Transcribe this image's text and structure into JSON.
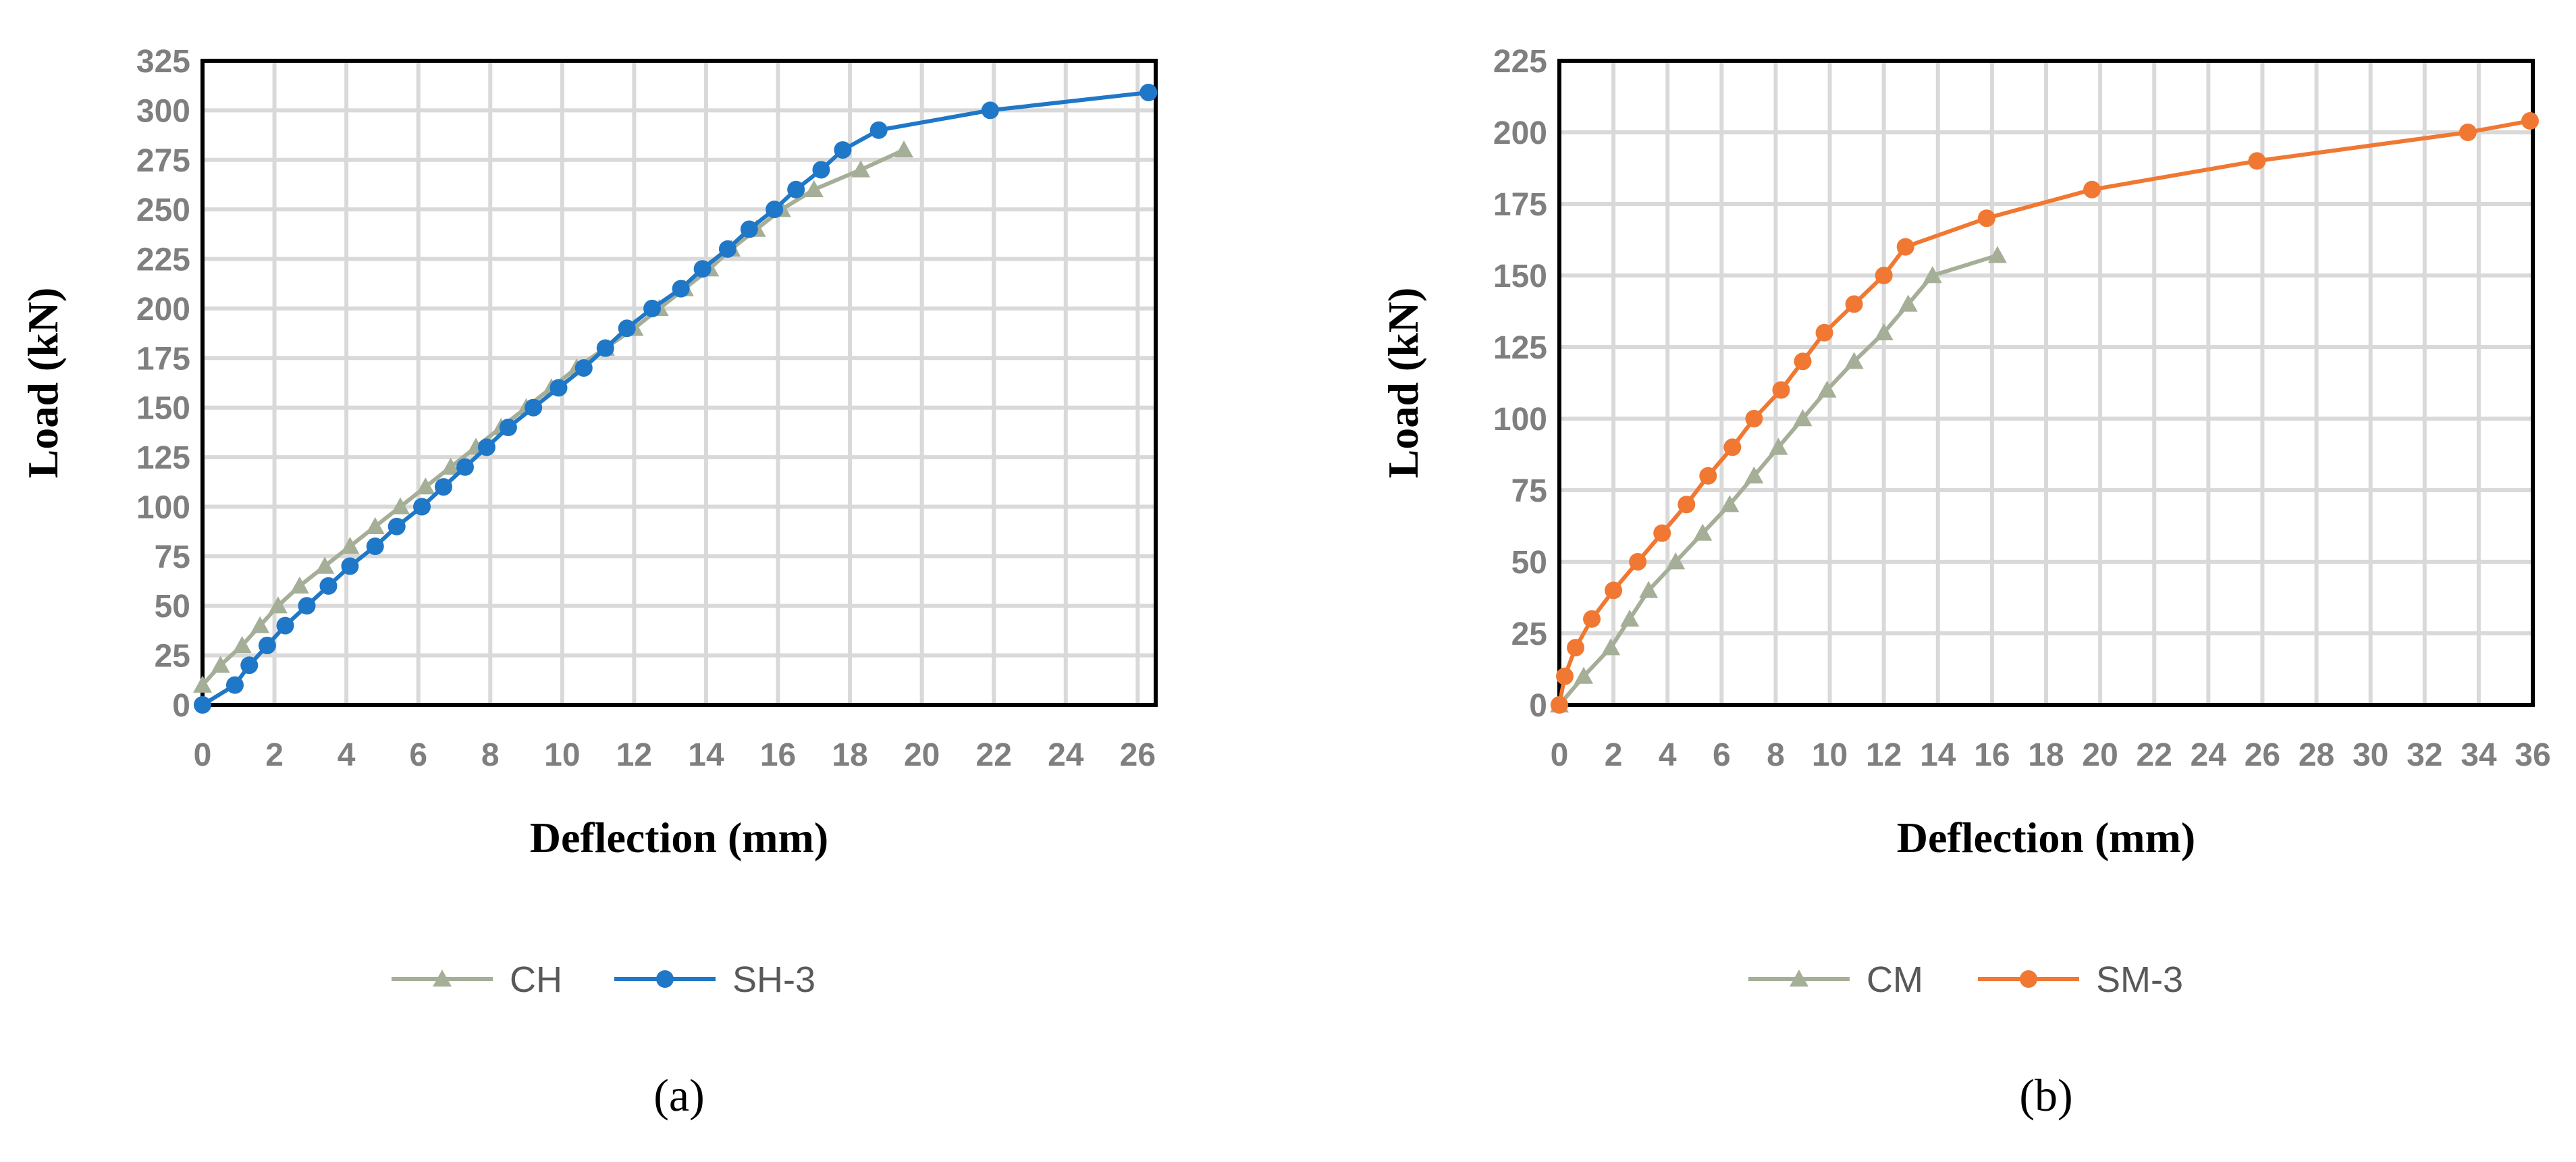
{
  "colors": {
    "control": "#a5ae97",
    "sh3": "#1f77c8",
    "sm3": "#f07832",
    "tick": "#7f7f7f",
    "grid": "#d9d9d9"
  },
  "chart_data": [
    {
      "type": "line",
      "panel_label": "(a)",
      "xlabel": "Deflection (mm)",
      "ylabel": "Load (kN)",
      "xlim": [
        0,
        26.5
      ],
      "ylim": [
        0,
        325
      ],
      "xticks": [
        0,
        2,
        4,
        6,
        8,
        10,
        12,
        14,
        16,
        18,
        20,
        22,
        24,
        26
      ],
      "yticks": [
        0,
        25,
        50,
        75,
        100,
        125,
        150,
        175,
        200,
        225,
        250,
        275,
        300,
        325
      ],
      "grid": true,
      "legend_position": "bottom",
      "series": [
        {
          "name": "CH",
          "marker": "triangle",
          "color": "#a5ae97",
          "x": [
            0,
            0.5,
            1.1,
            1.6,
            2.1,
            2.7,
            3.4,
            4.1,
            4.8,
            5.5,
            6.2,
            6.9,
            7.6,
            8.3,
            9.0,
            9.7,
            10.4,
            11.2,
            12.0,
            12.7,
            13.4,
            14.1,
            14.7,
            15.4,
            16.1,
            17.0,
            18.3,
            19.5
          ],
          "y": [
            10,
            20,
            30,
            40,
            50,
            60,
            70,
            80,
            90,
            100,
            110,
            120,
            130,
            140,
            150,
            160,
            170,
            180,
            190,
            200,
            210,
            220,
            230,
            240,
            250,
            260,
            270,
            280
          ]
        },
        {
          "name": "SH-3",
          "marker": "circle",
          "color": "#1f77c8",
          "x": [
            0,
            0.9,
            1.3,
            1.8,
            2.3,
            2.9,
            3.5,
            4.1,
            4.8,
            5.4,
            6.1,
            6.7,
            7.3,
            7.9,
            8.5,
            9.2,
            9.9,
            10.6,
            11.2,
            11.8,
            12.5,
            13.3,
            13.9,
            14.6,
            15.2,
            15.9,
            16.5,
            17.2,
            17.8,
            18.8,
            21.9,
            26.3
          ],
          "y": [
            0,
            10,
            20,
            30,
            40,
            50,
            60,
            70,
            80,
            90,
            100,
            110,
            120,
            130,
            140,
            150,
            160,
            170,
            180,
            190,
            200,
            210,
            220,
            230,
            240,
            250,
            260,
            270,
            280,
            290,
            300,
            309
          ]
        }
      ]
    },
    {
      "type": "line",
      "panel_label": "(b)",
      "xlabel": "Deflection (mm)",
      "ylabel": "Load (kN)",
      "xlim": [
        0,
        36
      ],
      "ylim": [
        0,
        225
      ],
      "xticks": [
        0,
        2,
        4,
        6,
        8,
        10,
        12,
        14,
        16,
        18,
        20,
        22,
        24,
        26,
        28,
        30,
        32,
        34,
        36
      ],
      "yticks": [
        0,
        25,
        50,
        75,
        100,
        125,
        150,
        175,
        200,
        225
      ],
      "grid": true,
      "legend_position": "bottom",
      "series": [
        {
          "name": "CM",
          "marker": "triangle",
          "color": "#a5ae97",
          "x": [
            0,
            0.9,
            1.9,
            2.6,
            3.3,
            4.3,
            5.3,
            6.3,
            7.2,
            8.1,
            9.0,
            9.9,
            10.9,
            12.0,
            12.9,
            13.8,
            16.2
          ],
          "y": [
            0,
            10,
            20,
            30,
            40,
            50,
            60,
            70,
            80,
            90,
            100,
            110,
            120,
            130,
            140,
            150,
            157
          ]
        },
        {
          "name": "SM-3",
          "marker": "circle",
          "color": "#f07832",
          "x": [
            0,
            0.2,
            0.6,
            1.2,
            2.0,
            2.9,
            3.8,
            4.7,
            5.5,
            6.4,
            7.2,
            8.2,
            9.0,
            9.8,
            10.9,
            12.0,
            12.8,
            15.8,
            19.7,
            25.8,
            33.6,
            35.9
          ],
          "y": [
            0,
            10,
            20,
            30,
            40,
            50,
            60,
            70,
            80,
            90,
            100,
            110,
            120,
            130,
            140,
            150,
            160,
            170,
            180,
            190,
            200,
            204
          ]
        }
      ]
    }
  ]
}
